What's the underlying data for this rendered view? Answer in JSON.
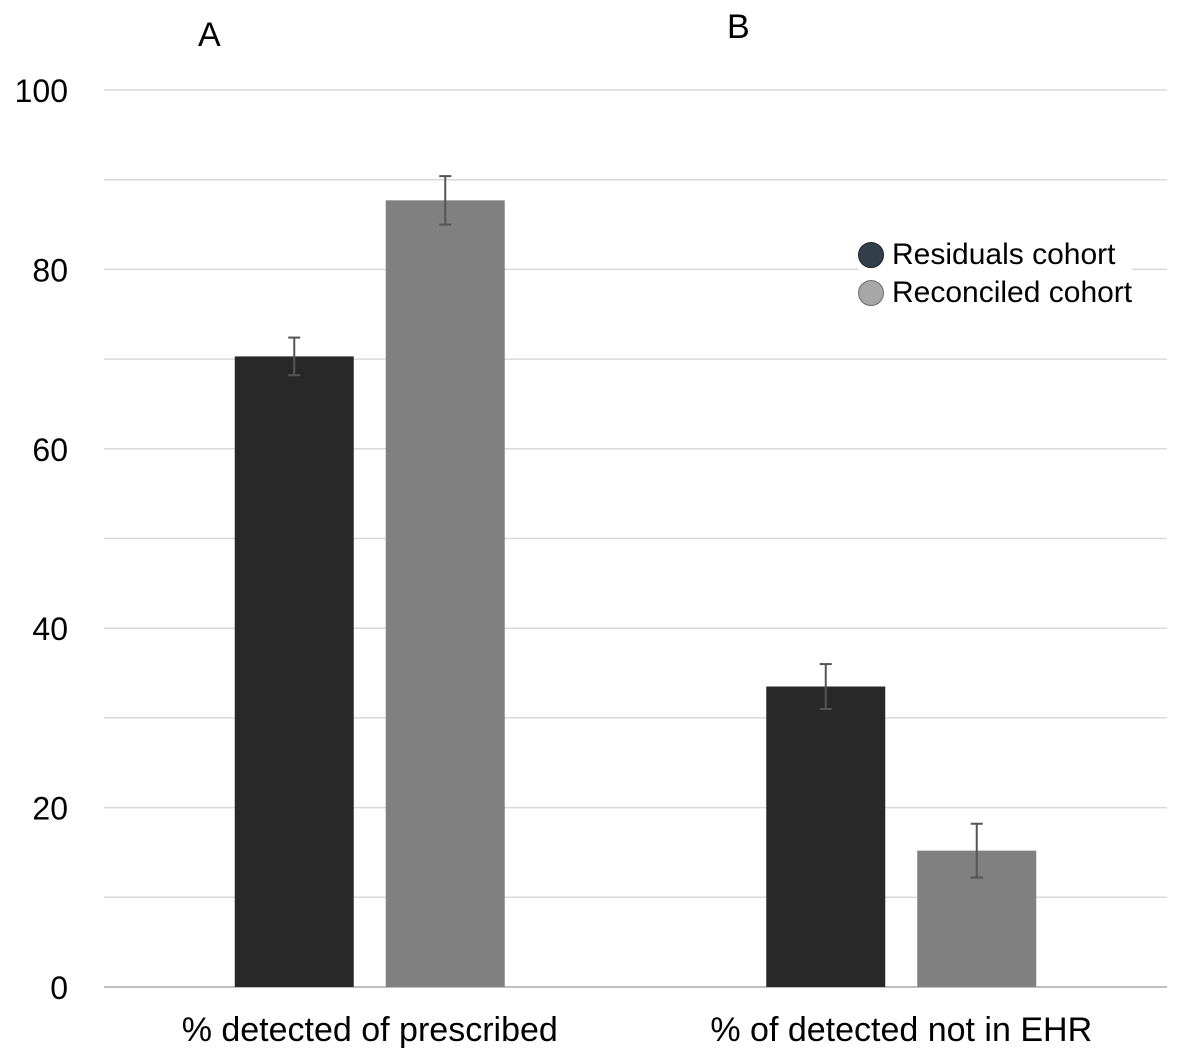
{
  "panels": {
    "a": "A",
    "b": "B"
  },
  "legend": {
    "items": [
      {
        "label": "Residuals cohort",
        "color": "#333f48"
      },
      {
        "label": "Reconciled cohort",
        "color": "#a7a7a7"
      }
    ]
  },
  "chart_data": {
    "type": "bar",
    "categories": [
      "% detected of prescribed",
      "% of detected not in EHR"
    ],
    "series": [
      {
        "name": "Residuals cohort",
        "color": "#282828",
        "values": [
          70.3,
          33.5
        ],
        "error": [
          2.1,
          2.5
        ]
      },
      {
        "name": "Reconciled cohort",
        "color": "#808080",
        "values": [
          87.7,
          15.2
        ],
        "error": [
          2.7,
          3.0
        ]
      }
    ],
    "title": "",
    "xlabel": "",
    "ylabel": "",
    "ylim": [
      0,
      100
    ],
    "yticks": [
      0,
      20,
      40,
      60,
      80,
      100
    ],
    "minor_gridlines": [
      10,
      30,
      50,
      70,
      90
    ],
    "grid": true,
    "legend_position": "right"
  }
}
